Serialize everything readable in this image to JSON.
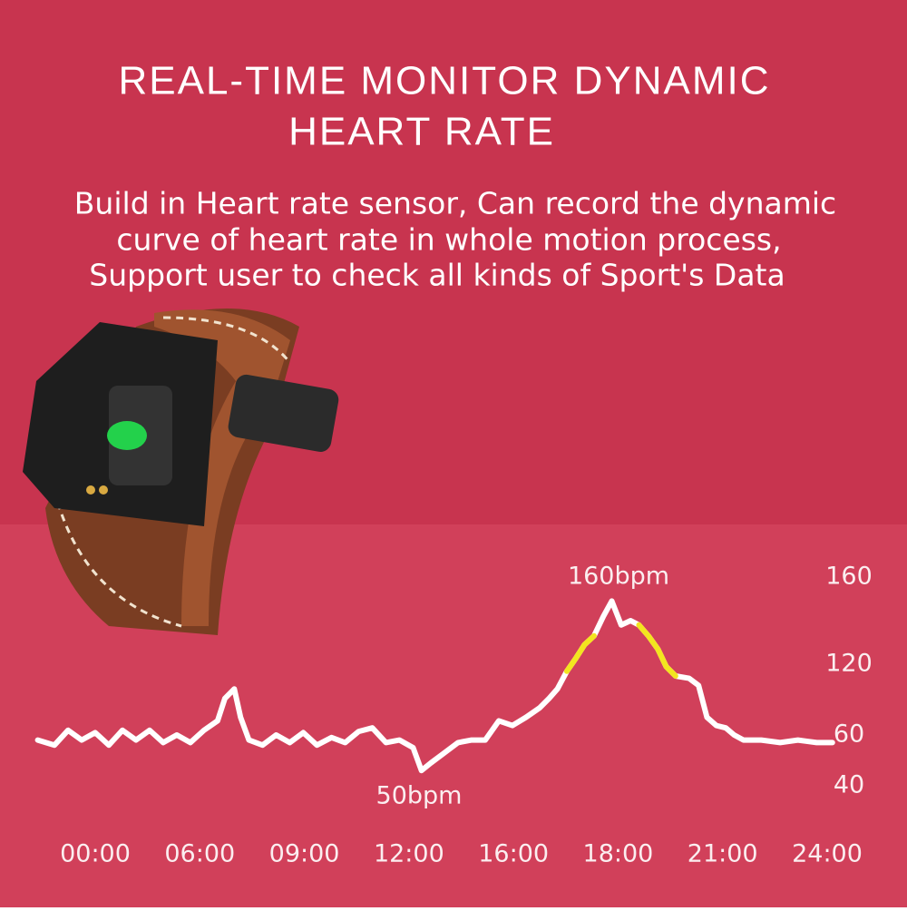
{
  "chart_data": {
    "type": "line",
    "title": [
      "REAL-TIME MONITOR DYNAMIC",
      "HEART RATE"
    ],
    "subtitle": [
      "Build in Heart rate sensor, Can record the dynamic",
      "curve of heart rate in whole motion process,",
      "Support user to check all kinds of Sport's Data"
    ],
    "annotations": [
      "160bpm",
      "50bpm"
    ],
    "x": [
      -0.55,
      -0.39,
      -0.26,
      -0.13,
      0,
      0.13,
      0.26,
      0.39,
      0.52,
      0.65,
      0.78,
      0.91,
      1.04,
      1.17,
      1.24,
      1.33,
      1.39,
      1.47,
      1.6,
      1.73,
      1.86,
      1.99,
      2.12,
      2.26,
      2.39,
      2.52,
      2.65,
      2.78,
      2.91,
      3.04,
      3.12,
      3.21,
      3.34,
      3.47,
      3.6,
      3.73,
      3.86,
      3.99,
      4.12,
      4.25,
      4.34,
      4.42,
      4.51,
      4.6,
      4.68,
      4.77,
      4.86,
      4.94,
      5.03,
      5.12,
      5.2,
      5.29,
      5.38,
      5.46,
      5.55,
      5.68,
      5.77,
      5.85,
      5.94,
      6.03,
      6.11,
      6.2,
      6.37,
      6.55,
      6.72,
      6.9,
      7.05
    ],
    "series": [
      {
        "color": "#ffffff",
        "values": [
          58,
          56,
          64,
          58,
          62,
          56,
          64,
          58,
          64,
          57,
          60,
          57,
          64,
          72,
          91,
          99,
          75,
          58,
          56,
          60,
          57,
          62,
          56,
          59,
          57,
          63,
          66,
          57,
          58,
          55,
          46,
          49,
          53,
          57,
          58,
          58,
          72,
          68,
          75,
          83,
          91,
          99,
          114,
          123,
          129,
          133,
          142,
          149,
          138,
          140,
          138,
          133,
          127,
          118,
          110,
          108,
          102,
          75,
          68,
          66,
          60,
          58,
          58,
          57,
          58,
          57,
          57
        ]
      },
      {
        "color": "#f3e51f",
        "values": [
          null,
          null,
          null,
          null,
          null,
          null,
          null,
          null,
          null,
          null,
          null,
          null,
          null,
          null,
          null,
          null,
          null,
          null,
          null,
          null,
          null,
          null,
          null,
          null,
          null,
          null,
          null,
          null,
          null,
          null,
          null,
          null,
          null,
          null,
          null,
          null,
          null,
          null,
          null,
          null,
          null,
          null,
          114,
          123,
          129,
          133,
          null,
          null,
          null,
          null,
          138,
          133,
          127,
          118,
          110,
          null,
          null,
          null,
          null,
          null,
          null,
          null,
          null,
          null,
          null,
          null,
          null
        ]
      }
    ],
    "xlim": [
      -0.55,
      7.05
    ],
    "xticks": [
      {
        "value": 0,
        "label": "00:00"
      },
      {
        "value": 1,
        "label": "06:00"
      },
      {
        "value": 2,
        "label": "09:00"
      },
      {
        "value": 3,
        "label": "12:00"
      },
      {
        "value": 4,
        "label": "16:00"
      },
      {
        "value": 5,
        "label": "18:00"
      },
      {
        "value": 6,
        "label": "21:00"
      },
      {
        "value": 7,
        "label": "24:00"
      }
    ],
    "ylim": [
      40,
      160
    ],
    "yticks": [
      40,
      60,
      120,
      160
    ]
  }
}
